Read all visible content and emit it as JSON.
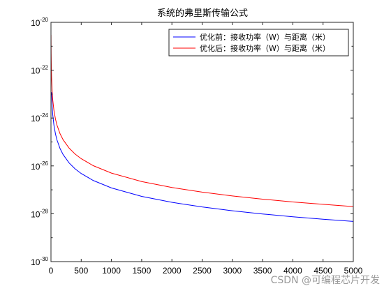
{
  "chart_data": {
    "type": "line",
    "title": "系统的弗里斯传输公式",
    "xlabel": "",
    "ylabel": "",
    "xlim": [
      0,
      5000
    ],
    "ylim": [
      1e-30,
      1e-20
    ],
    "yscale": "log",
    "grid": false,
    "legend_position": "top-right",
    "x_ticks": [
      0,
      500,
      1000,
      1500,
      2000,
      2500,
      3000,
      3500,
      4000,
      4500,
      5000
    ],
    "x_tick_labels": [
      "0",
      "500",
      "1000",
      "1500",
      "2000",
      "2500",
      "3000",
      "3500",
      "4000",
      "4500",
      "5000"
    ],
    "y_ticks": [
      {
        "value": 1e-20,
        "base": "10",
        "exp": "-20"
      },
      {
        "value": 1e-22,
        "base": "10",
        "exp": "-22"
      },
      {
        "value": 1e-24,
        "base": "10",
        "exp": "-24"
      },
      {
        "value": 1e-26,
        "base": "10",
        "exp": "-26"
      },
      {
        "value": 1e-28,
        "base": "10",
        "exp": "-28"
      },
      {
        "value": 1e-30,
        "base": "10",
        "exp": "-30"
      }
    ],
    "series": [
      {
        "name": "优化前：接收功率（W）与距离（米）",
        "color": "#0000ff",
        "x": [
          10,
          20,
          30,
          50,
          75,
          100,
          150,
          200,
          300,
          400,
          500,
          700,
          1000,
          1500,
          2000,
          2500,
          3000,
          3500,
          4000,
          4500,
          5000
        ],
        "y": [
          1.2e-23,
          3e-24,
          1.33e-24,
          4.8e-25,
          2.13e-25,
          1.2e-25,
          5.33e-26,
          3e-26,
          1.33e-26,
          7.5e-27,
          4.8e-27,
          2.45e-27,
          1.2e-27,
          5.33e-28,
          3e-28,
          1.92e-28,
          1.33e-28,
          9.8e-29,
          7.5e-29,
          5.9e-29,
          4.8e-29
        ]
      },
      {
        "name": "优化后：接收功率（W）与距离（米）",
        "color": "#ff0000",
        "x": [
          1,
          3,
          6,
          10,
          20,
          30,
          50,
          75,
          100,
          150,
          200,
          300,
          400,
          500,
          700,
          1000,
          1500,
          2000,
          2500,
          3000,
          3500,
          4000,
          4500,
          5000
        ],
        "y": [
          3e-21,
          5e-22,
          1.4e-22,
          5e-23,
          1.25e-23,
          5.55e-24,
          2e-24,
          8.9e-25,
          5e-25,
          2.22e-25,
          1.25e-25,
          5.55e-26,
          3.12e-26,
          2e-26,
          1.02e-26,
          5e-27,
          2.22e-27,
          1.25e-27,
          8e-28,
          5.55e-28,
          4.08e-28,
          3.12e-28,
          2.47e-28,
          2e-28
        ]
      }
    ]
  },
  "watermark": "CSDN @可编程芯片开发"
}
